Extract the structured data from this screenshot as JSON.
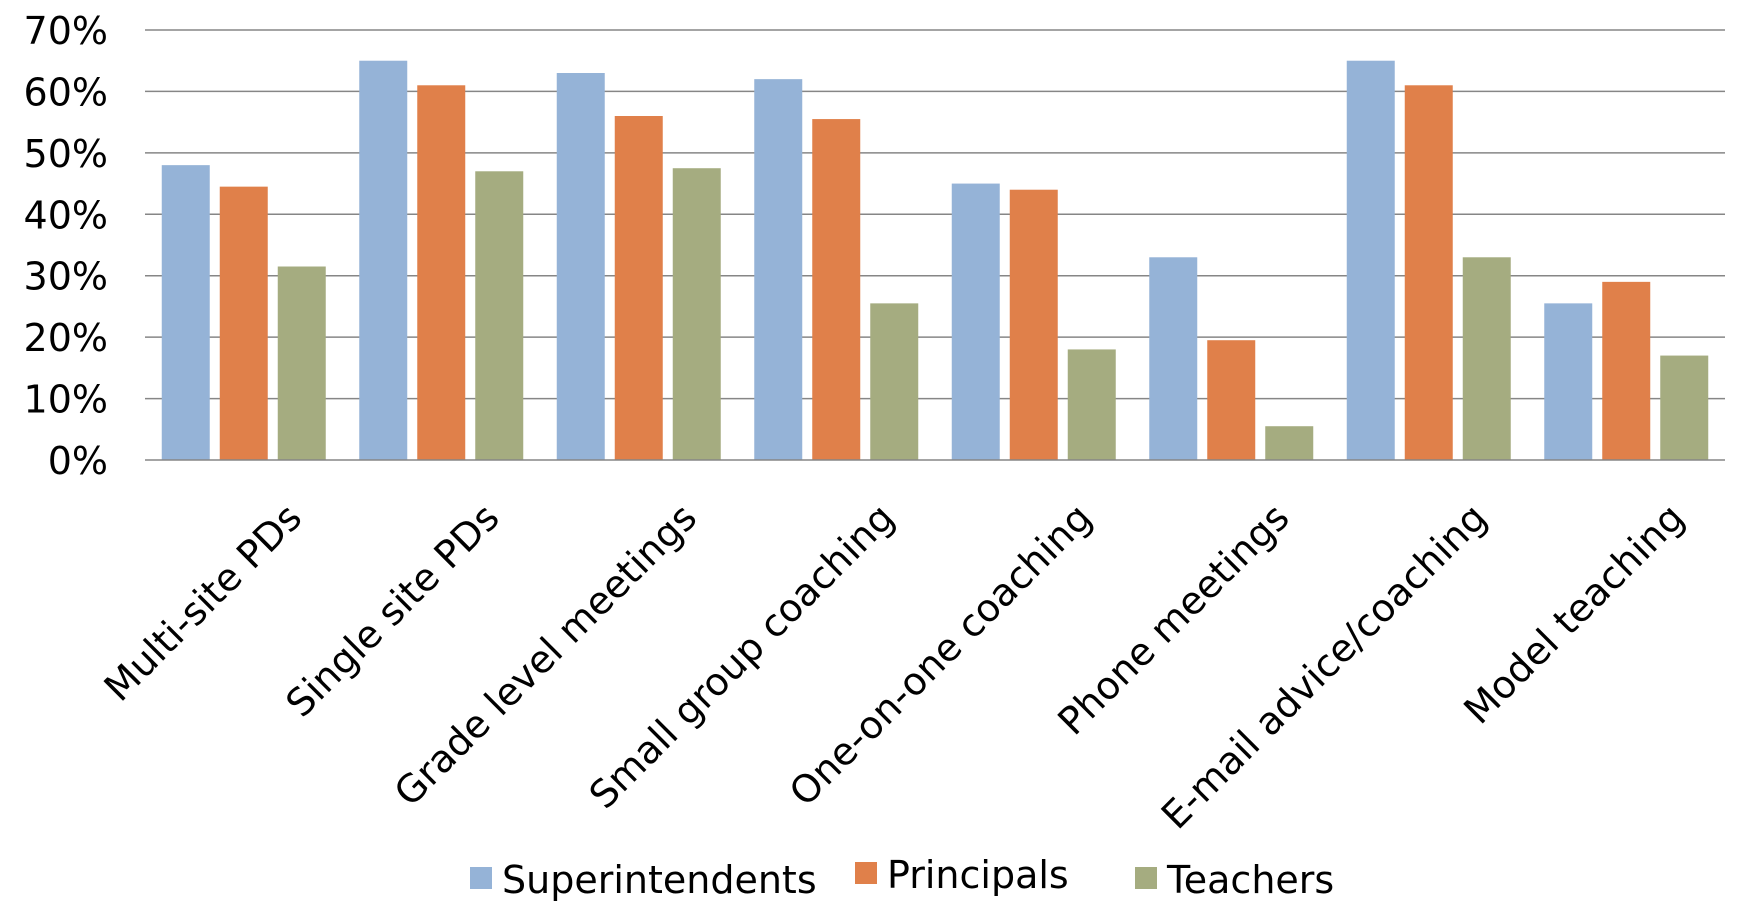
{
  "chart_data": {
    "type": "bar",
    "title": "",
    "xlabel": "",
    "ylabel": "",
    "ylim": [
      0,
      70
    ],
    "yticks": [
      0,
      10,
      20,
      30,
      40,
      50,
      60,
      70
    ],
    "tick_suffix": "%",
    "grid": true,
    "legend_position": "bottom",
    "categories": [
      "Multi-site PDs",
      "Single site PDs",
      "Grade level meetings",
      "Small group coaching",
      "One-on-one coaching",
      "Phone meetings",
      "E-mail advice/coaching",
      "Model teaching"
    ],
    "series": [
      {
        "name": "Superintendents",
        "color": "#95B3D7",
        "values": [
          48,
          65,
          63,
          62,
          45,
          33,
          65,
          25.5
        ]
      },
      {
        "name": "Principals",
        "color": "#E0804A",
        "values": [
          44.5,
          61,
          56,
          55.5,
          44,
          19.5,
          61,
          29
        ]
      },
      {
        "name": "Teachers",
        "color": "#A5AC80",
        "values": [
          31.5,
          47,
          47.5,
          25.5,
          18,
          5.5,
          33,
          17
        ]
      }
    ]
  }
}
